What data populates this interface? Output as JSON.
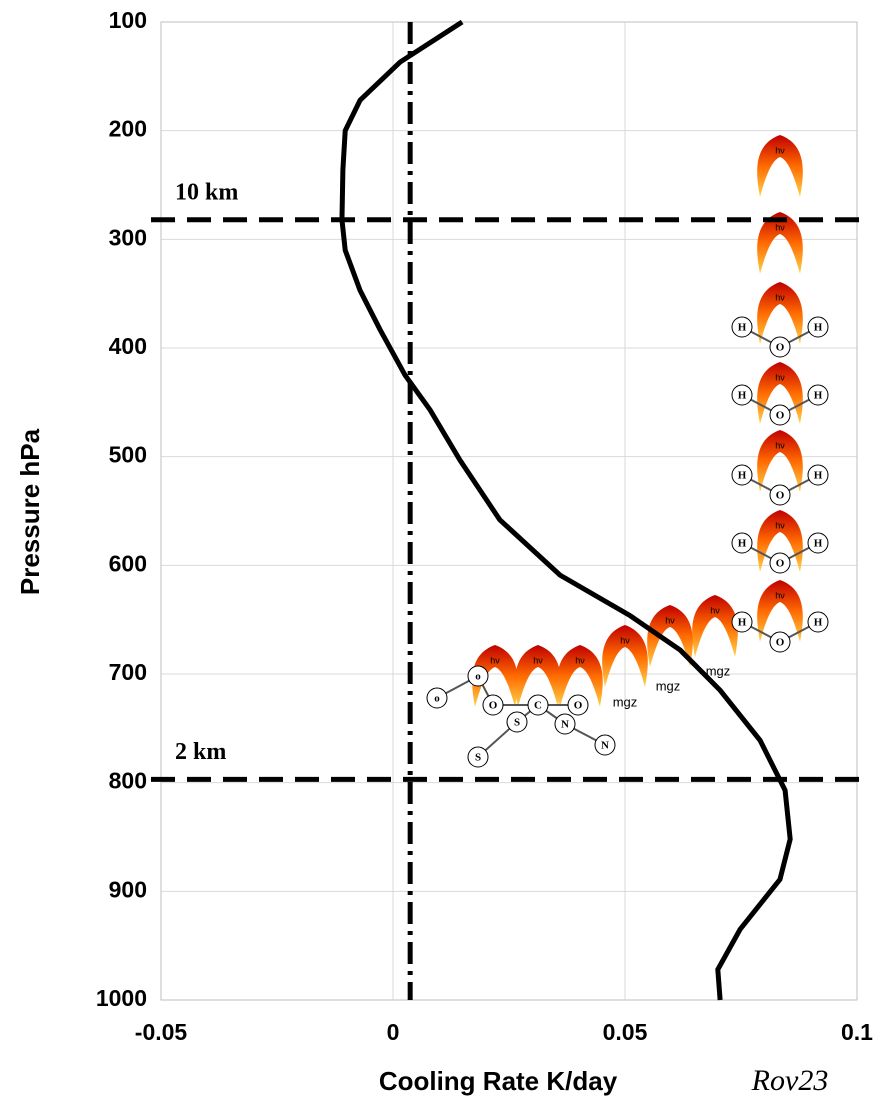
{
  "chart_data": {
    "type": "line",
    "xlabel": "Cooling Rate K/day",
    "ylabel": "Pressure hPa",
    "xlim": [
      -0.05,
      0.1
    ],
    "xticks": [
      -0.05,
      0,
      0.05,
      0.1
    ],
    "ylim": [
      100,
      1000
    ],
    "yticks": [
      100,
      200,
      300,
      400,
      500,
      600,
      700,
      800,
      900,
      1000
    ],
    "y_inverted": true,
    "grid": true,
    "series": [
      {
        "color": "#000000",
        "x": [
          0.0149,
          0.0015,
          -0.0071,
          -0.0103,
          -0.0108,
          -0.011,
          -0.0103,
          -0.0071,
          -0.0028,
          0.0026,
          0.008,
          0.0144,
          0.023,
          0.036,
          0.051,
          0.0619,
          0.0705,
          0.0791,
          0.0845,
          0.0856,
          0.0834,
          0.0748,
          0.07,
          0.0705
        ],
        "values": [
          100,
          137,
          172,
          200,
          236,
          282,
          310,
          347,
          383,
          425,
          457,
          503,
          558,
          609,
          646,
          678,
          715,
          761,
          807,
          852,
          889,
          935,
          972,
          1000
        ]
      }
    ],
    "reference_x": 0.0037,
    "levels": [
      {
        "value": 282,
        "label": "10 km"
      },
      {
        "value": 797,
        "label": "2 km"
      }
    ],
    "flame_label": "hν",
    "mgz_labels": [
      "mgz",
      "mgz",
      "mgz"
    ],
    "atom_labels": [
      "H",
      "O",
      "H",
      "H",
      "O",
      "H",
      "H",
      "O",
      "H",
      "H",
      "O",
      "H",
      "H",
      "O",
      "H",
      "O",
      "C",
      "O",
      "o",
      "o",
      "S",
      "S",
      "N",
      "N"
    ],
    "signature": "Rov23"
  }
}
